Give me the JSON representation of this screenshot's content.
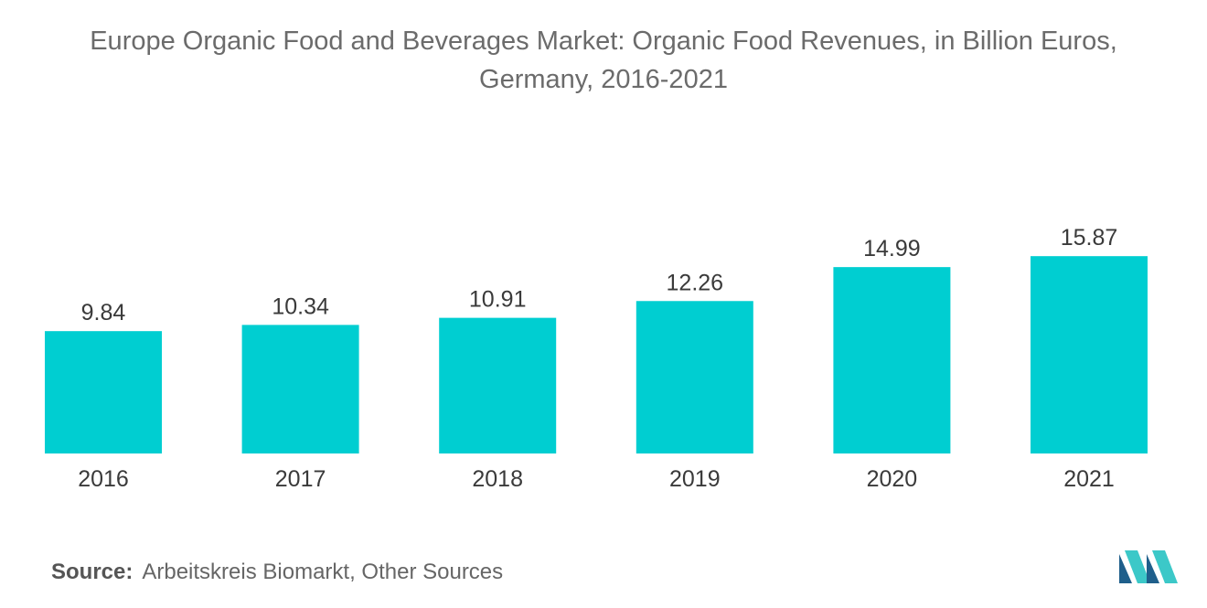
{
  "title_line1": "Europe Organic Food and Beverages Market: Organic Food Revenues, in Billion Euros,",
  "title_line2": "Germany, 2016-2021",
  "source_label": "Source:",
  "source_text": "Arbeitskreis Biomarkt, Other Sources",
  "colors": {
    "bar": "#00CED1",
    "logo_dark": "#1f5f8b",
    "logo_light": "#3cc8c8"
  },
  "chart_data": {
    "type": "bar",
    "title": "Europe Organic Food and Beverages Market: Organic Food Revenues, in Billion Euros, Germany, 2016-2021",
    "categories": [
      "2016",
      "2017",
      "2018",
      "2019",
      "2020",
      "2021"
    ],
    "values": [
      9.84,
      10.34,
      10.91,
      12.26,
      14.99,
      15.87
    ],
    "data_labels": [
      "9.84",
      "10.34",
      "10.91",
      "12.26",
      "14.99",
      "15.87"
    ],
    "xlabel": "",
    "ylabel": "",
    "ylim": [
      0,
      16
    ],
    "grid": false,
    "legend": "none"
  }
}
